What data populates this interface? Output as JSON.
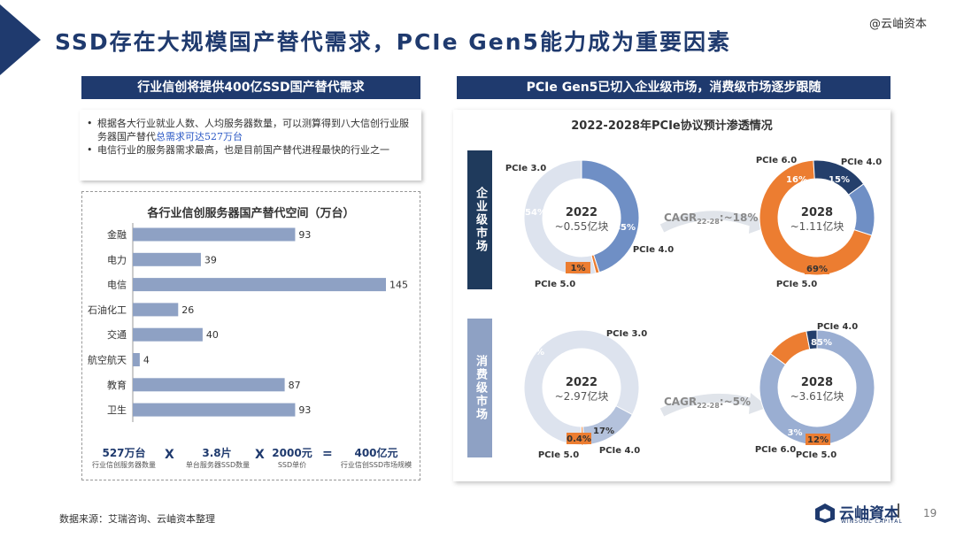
{
  "title": "SSD存在大规模国产替代需求，PCIe Gen5能力成为重要因素",
  "watermark": "@云岫资本",
  "left": {
    "header": "行业信创将提供400亿SSD国产替代需求",
    "bullets": [
      {
        "pre": "根据各大行业就业人数、人均服务器数量，可以测算得到八大信创行业服务器国产替代",
        "highlight": "总需求可达527万台",
        "post": ""
      },
      {
        "pre": "电信行业的服务器需求最高，也是目前国产替代进程最快的行业之一",
        "highlight": "",
        "post": ""
      }
    ],
    "bullet_dot": "•"
  },
  "equation": {
    "items": [
      {
        "value": "527万台",
        "label": "行业信创服务器数量"
      },
      {
        "value": "3.8片",
        "label": "单台服务器SSD数量"
      },
      {
        "value": "2000元",
        "label": "SSD单价"
      },
      {
        "value": "400亿元",
        "label": "行业信创SSD市场规模"
      }
    ],
    "ops": [
      "X",
      "X",
      "="
    ]
  },
  "right": {
    "header": "PCIe Gen5已切入企业级市场，消费级市场逐步跟随",
    "enterprise_label": "企业级市场",
    "consumer_label": "消费级市场",
    "cagr_ent": {
      "pre": "CAGR",
      "sub": "22-28",
      "post": ":~18%"
    },
    "cagr_con": {
      "pre": "CAGR",
      "sub": "22-28",
      "post": ":~5%"
    }
  },
  "footer": {
    "source": "数据来源：艾瑞咨询、云岫资本整理",
    "logo": "云岫資本",
    "logo_sub": "WINSOUL CAPITAL",
    "page": "19"
  },
  "chart_data": [
    {
      "type": "bar",
      "orientation": "horizontal",
      "title": "各行业信创服务器国产替代空间（万台）",
      "categories": [
        "金融",
        "电力",
        "电信",
        "石油化工",
        "交通",
        "航空航天",
        "教育",
        "卫生"
      ],
      "values": [
        93,
        39,
        145,
        26,
        40,
        4,
        87,
        93
      ],
      "color": "#8ea1c4"
    },
    {
      "type": "pie",
      "title": "2022-2028年PCIe协议预计渗透情况",
      "charts": [
        {
          "id": "ent2022",
          "center_year": "2022",
          "center_value": "~0.55亿块",
          "slices": [
            {
              "name": "PCIe 4.0",
              "value": 45,
              "label": "45%",
              "color": "#6f8fc5"
            },
            {
              "name": "PCIe 5.0",
              "value": 1,
              "label": "1%",
              "color": "#ec7d31"
            },
            {
              "name": "PCIe 3.0",
              "value": 54,
              "label": "54%",
              "color": "#dde3ee"
            }
          ]
        },
        {
          "id": "ent2028",
          "center_year": "2028",
          "center_value": "~1.11亿块",
          "slices": [
            {
              "name": "PCIe 4.0",
              "value": 15,
              "label": "15%",
              "color": "#6f8fc5"
            },
            {
              "name": "PCIe 5.0",
              "value": 69,
              "label": "69%",
              "color": "#ec7d31"
            },
            {
              "name": "PCIe 6.0",
              "value": 16,
              "label": "16%",
              "color": "#243f6b"
            }
          ]
        },
        {
          "id": "con2022",
          "center_year": "2022",
          "center_value": "~2.97亿块",
          "slices": [
            {
              "name": "PCIe 4.0",
              "value": 17,
              "label": "17%",
              "color": "#b4c2dc"
            },
            {
              "name": "PCIe 5.0",
              "value": 0.4,
              "label": "0.4%",
              "color": "#ec7d31"
            },
            {
              "name": "PCIe 3.0",
              "value": 83,
              "label": "83%",
              "color": "#dde3ee"
            }
          ]
        },
        {
          "id": "con2028",
          "center_year": "2028",
          "center_value": "~3.61亿块",
          "slices": [
            {
              "name": "PCIe 4.0",
              "value": 85,
              "label": "85%",
              "color": "#9aaed2"
            },
            {
              "name": "PCIe 5.0",
              "value": 12,
              "label": "12%",
              "color": "#ec7d31"
            },
            {
              "name": "PCIe 6.0",
              "value": 3,
              "label": "3%",
              "color": "#243f6b"
            }
          ]
        }
      ]
    }
  ]
}
